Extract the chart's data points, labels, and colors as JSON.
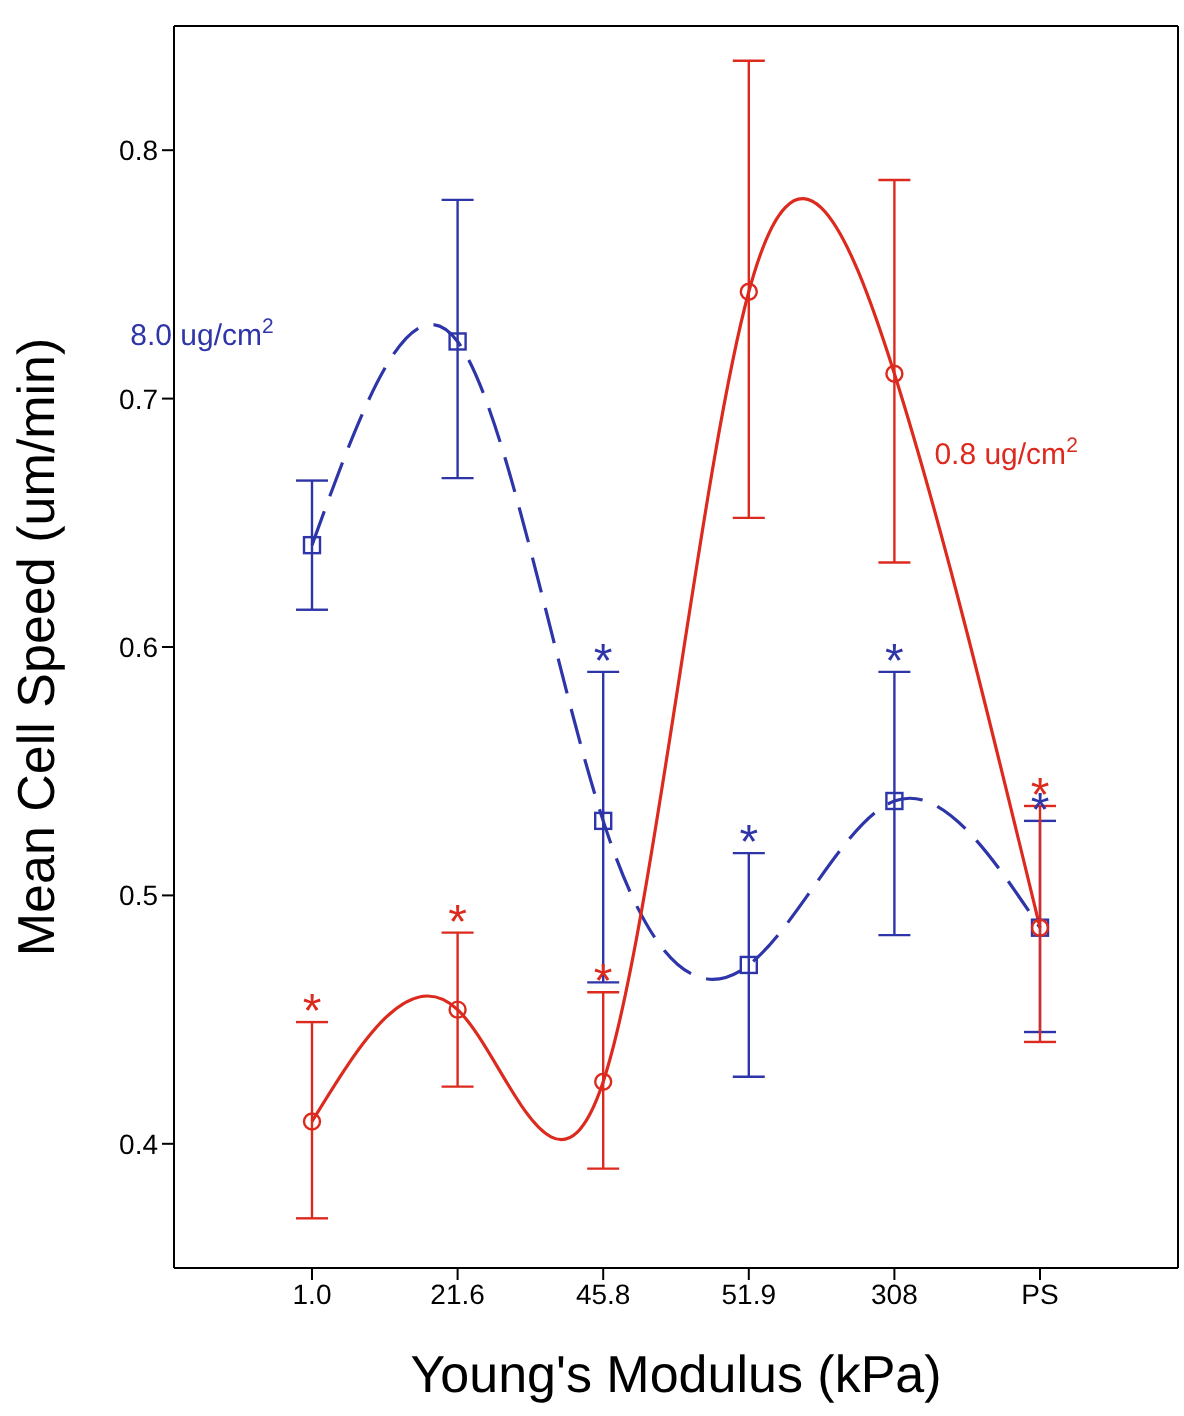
{
  "chart_data": {
    "type": "line",
    "xlabel": "Young's Modulus (kPa)",
    "ylabel": "Mean Cell Speed (um/min)",
    "categories": [
      "1.0",
      "21.6",
      "45.8",
      "51.9",
      "308",
      "PS"
    ],
    "ylim": [
      0.35,
      0.85
    ],
    "yticks": [
      0.4,
      0.5,
      0.6,
      0.7,
      0.8
    ],
    "grid": false,
    "legend": false,
    "series": [
      {
        "name": "8.0 ug/cm$^{2}$",
        "color": "#2e35a8",
        "values": [
          0.641,
          0.723,
          0.53,
          0.472,
          0.538,
          0.487
        ],
        "errors": [
          [
            0.615,
            0.667
          ],
          [
            0.668,
            0.78
          ],
          [
            0.465,
            0.59
          ],
          [
            0.427,
            0.517
          ],
          [
            0.484,
            0.59
          ],
          [
            0.445,
            0.53
          ]
        ],
        "marker": "square",
        "line_style": "dashed"
      },
      {
        "name": "0.8 ug/cm$^{2}$",
        "color": "#dd2a1e",
        "values": [
          0.409,
          0.454,
          0.425,
          0.743,
          0.71,
          0.487
        ],
        "errors": [
          [
            0.37,
            0.449
          ],
          [
            0.423,
            0.485
          ],
          [
            0.39,
            0.461
          ],
          [
            0.652,
            0.836
          ],
          [
            0.634,
            0.788
          ],
          [
            0.441,
            0.536
          ]
        ],
        "marker": "circle",
        "line_style": "solid"
      }
    ],
    "annotations": [
      {
        "text": "*",
        "x": "1.0",
        "y": 0.449
      },
      {
        "text": "*",
        "x": "21.6",
        "y": 0.485
      },
      {
        "text": "*",
        "x": "45.8",
        "y": 0.461
      },
      {
        "text": "*",
        "x": "PS",
        "y": 0.536
      },
      {
        "text": "*",
        "x": "45.8",
        "y": 0.59
      },
      {
        "text": "*",
        "x": "51.9",
        "y": 0.517
      },
      {
        "text": "*",
        "x": "308",
        "y": 0.59
      },
      {
        "text": "*",
        "x": "PS",
        "y": 0.53
      }
    ]
  }
}
